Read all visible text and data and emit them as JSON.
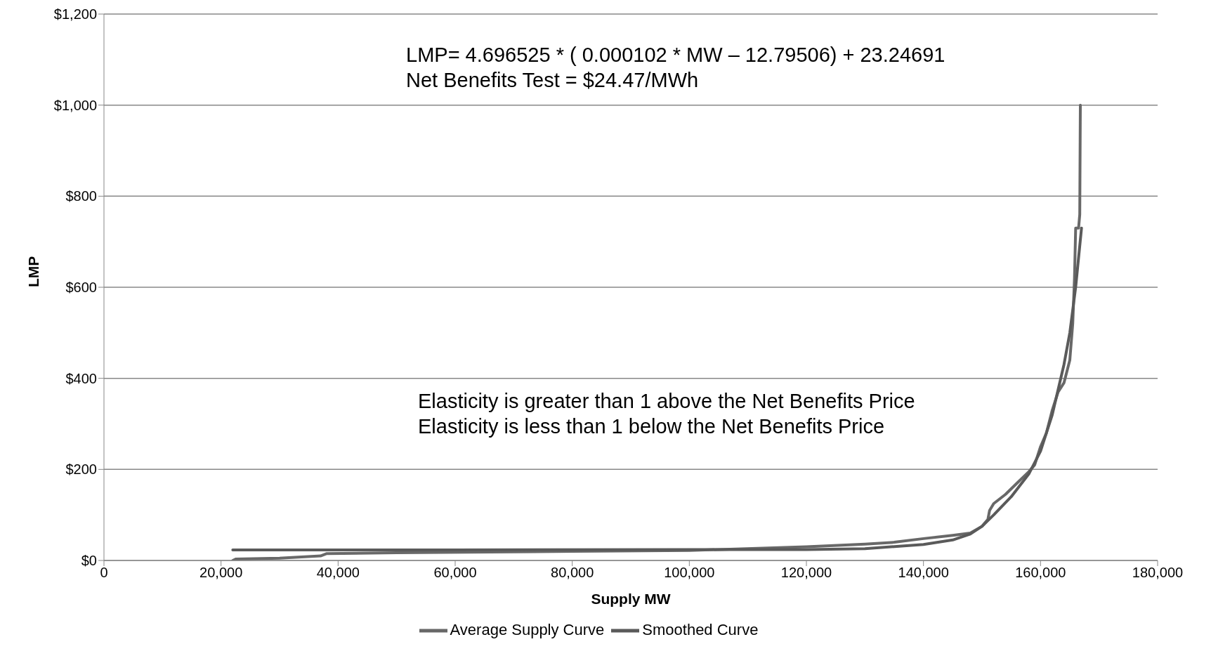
{
  "chart_data": {
    "type": "line",
    "xlabel": "Supply MW",
    "ylabel": "LMP",
    "annotations": [
      "LMP= 4.696525 * ( 0.000102 * MW – 12.79506) + 23.24691\nNet Benefits Test = $24.47/MWh",
      "Elasticity is greater than 1 above the Net Benefits Price\nElasticity is less than 1 below the Net Benefits Price"
    ],
    "series": [
      {
        "name": "Average Supply Curve",
        "color": "#686868",
        "x": [
          22000,
          22500,
          30000,
          37000,
          38000,
          50000,
          80000,
          100000,
          120000,
          130000,
          135000,
          140000,
          145000,
          148000,
          150000,
          151000,
          151300,
          152000,
          154000,
          156000,
          158000,
          159000,
          160000,
          161000,
          162000,
          163000,
          164000,
          165000,
          165500,
          165800,
          166000,
          166500,
          166700,
          166800
        ],
        "values": [
          0,
          3,
          5,
          10,
          15,
          17,
          20,
          22,
          30,
          36,
          40,
          48,
          55,
          60,
          75,
          90,
          110,
          125,
          145,
          170,
          195,
          210,
          250,
          280,
          330,
          370,
          390,
          440,
          520,
          620,
          730,
          730,
          760,
          1000
        ]
      },
      {
        "name": "Smoothed Curve",
        "color": "#5a5a5a",
        "x": [
          22000,
          60000,
          100000,
          120000,
          130000,
          140000,
          145000,
          148000,
          150000,
          152000,
          155000,
          158000,
          160000,
          162000,
          164000,
          165000,
          166000,
          167000
        ],
        "values": [
          23,
          23,
          24,
          24,
          26,
          35,
          45,
          58,
          75,
          100,
          140,
          190,
          240,
          320,
          430,
          500,
          600,
          730
        ]
      }
    ],
    "xlim": [
      0,
      180000
    ],
    "ylim": [
      0,
      1200
    ],
    "xticks": [
      0,
      {
        "value": 20000,
        "label": "20,000"
      },
      {
        "value": 40000,
        "label": "40,000"
      },
      {
        "value": 60000,
        "label": "60,000"
      },
      {
        "value": 80000,
        "label": "80,000"
      },
      {
        "value": 100000,
        "label": "100,000"
      },
      {
        "value": 120000,
        "label": "120,000"
      },
      {
        "value": 140000,
        "label": "140,000"
      },
      {
        "value": 160000,
        "label": "160,000"
      },
      {
        "value": 180000,
        "label": "180,000"
      }
    ],
    "yticks": [
      {
        "value": 0,
        "label": "$0"
      },
      {
        "value": 200,
        "label": "$200"
      },
      {
        "value": 400,
        "label": "$400"
      },
      {
        "value": 600,
        "label": "$600"
      },
      {
        "value": 800,
        "label": "$800"
      },
      {
        "value": 1000,
        "label": "$1,000"
      },
      {
        "value": 1200,
        "label": "$1,200"
      }
    ],
    "grid": "y",
    "legend": "bottom",
    "marker": "none",
    "line_style": "solid"
  }
}
